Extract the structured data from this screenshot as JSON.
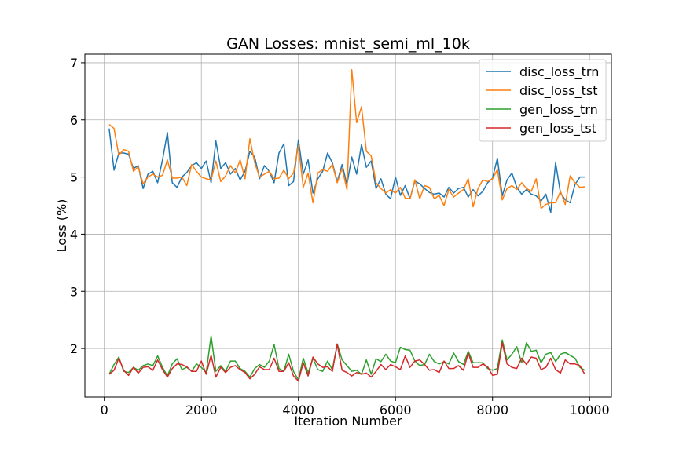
{
  "chart_data": {
    "type": "line",
    "title": "GAN Losses: mnist_semi_ml_10k",
    "xlabel": "Iteration Number",
    "ylabel": "Loss (%)",
    "xlim": [
      -400,
      10450
    ],
    "ylim": [
      1.15,
      7.15
    ],
    "xticks": [
      0,
      2000,
      4000,
      6000,
      8000,
      10000
    ],
    "yticks": [
      2,
      3,
      4,
      5,
      6,
      7
    ],
    "grid": true,
    "legend_position": "top-right",
    "x": [
      100,
      200,
      300,
      400,
      500,
      600,
      700,
      800,
      900,
      1000,
      1100,
      1200,
      1300,
      1400,
      1500,
      1600,
      1700,
      1800,
      1900,
      2000,
      2100,
      2200,
      2300,
      2400,
      2500,
      2600,
      2700,
      2800,
      2900,
      3000,
      3100,
      3200,
      3300,
      3400,
      3500,
      3600,
      3700,
      3800,
      3900,
      4000,
      4100,
      4200,
      4300,
      4400,
      4500,
      4600,
      4700,
      4800,
      4900,
      5000,
      5100,
      5200,
      5300,
      5400,
      5500,
      5600,
      5700,
      5800,
      5900,
      6000,
      6100,
      6200,
      6300,
      6400,
      6500,
      6600,
      6700,
      6800,
      6900,
      7000,
      7100,
      7200,
      7300,
      7400,
      7500,
      7600,
      7700,
      7800,
      7900,
      8000,
      8100,
      8200,
      8300,
      8400,
      8500,
      8600,
      8700,
      8800,
      8900,
      9000,
      9100,
      9200,
      9300,
      9400,
      9500,
      9600,
      9700,
      9800,
      9900
    ],
    "series": [
      {
        "name": "disc_loss_trn",
        "color": "#1f77b4",
        "values": [
          5.85,
          5.12,
          5.42,
          5.42,
          5.4,
          5.15,
          5.2,
          4.8,
          5.05,
          5.1,
          4.9,
          5.3,
          5.78,
          4.9,
          4.82,
          5.0,
          5.08,
          5.2,
          5.25,
          5.15,
          5.28,
          4.9,
          5.63,
          5.15,
          5.25,
          5.05,
          5.15,
          4.95,
          5.1,
          5.45,
          5.35,
          4.97,
          5.2,
          5.1,
          4.9,
          5.42,
          5.58,
          4.85,
          4.92,
          5.65,
          5.05,
          5.3,
          4.72,
          4.97,
          5.1,
          5.42,
          5.25,
          4.92,
          5.22,
          4.87,
          5.35,
          5.05,
          5.57,
          5.17,
          5.28,
          4.8,
          4.97,
          4.7,
          4.62,
          5.0,
          4.68,
          4.85,
          4.62,
          4.93,
          4.88,
          4.8,
          4.73,
          4.7,
          4.72,
          4.65,
          4.82,
          4.72,
          4.8,
          4.82,
          4.65,
          4.78,
          4.67,
          4.75,
          4.9,
          4.98,
          5.33,
          4.67,
          4.95,
          5.07,
          4.82,
          4.7,
          4.78,
          4.7,
          4.67,
          4.58,
          4.7,
          4.38,
          5.25,
          4.72,
          4.6,
          4.55,
          4.87,
          5.0,
          5.0
        ]
      },
      {
        "name": "disc_loss_tst",
        "color": "#ff7f0e",
        "values": [
          5.92,
          5.85,
          5.38,
          5.48,
          5.45,
          5.1,
          5.18,
          4.88,
          5.0,
          5.05,
          5.0,
          5.03,
          5.3,
          4.98,
          4.98,
          5.0,
          4.85,
          5.22,
          5.1,
          5.0,
          4.97,
          4.95,
          5.28,
          4.92,
          5.02,
          5.2,
          5.07,
          5.3,
          4.97,
          5.67,
          5.25,
          5.0,
          5.05,
          5.1,
          4.97,
          4.98,
          5.12,
          4.97,
          5.07,
          5.55,
          4.82,
          5.07,
          4.55,
          5.07,
          5.13,
          5.1,
          5.22,
          4.9,
          5.15,
          4.78,
          6.88,
          5.95,
          6.23,
          5.45,
          5.37,
          4.9,
          4.8,
          4.72,
          4.78,
          4.72,
          4.82,
          4.63,
          4.62,
          4.95,
          4.62,
          4.85,
          4.82,
          4.62,
          4.68,
          4.5,
          4.78,
          4.65,
          4.72,
          4.78,
          4.97,
          4.48,
          4.8,
          4.95,
          4.92,
          4.97,
          5.13,
          4.6,
          4.8,
          4.85,
          4.78,
          4.9,
          4.8,
          4.75,
          4.97,
          4.45,
          4.52,
          4.55,
          4.55,
          4.75,
          4.52,
          5.02,
          4.9,
          4.82,
          4.83
        ]
      },
      {
        "name": "gen_loss_trn",
        "color": "#2ca02c",
        "values": [
          1.55,
          1.72,
          1.85,
          1.6,
          1.58,
          1.67,
          1.62,
          1.7,
          1.73,
          1.7,
          1.87,
          1.67,
          1.52,
          1.73,
          1.82,
          1.63,
          1.67,
          1.6,
          1.73,
          1.67,
          1.58,
          2.22,
          1.6,
          1.7,
          1.6,
          1.78,
          1.78,
          1.65,
          1.6,
          1.5,
          1.65,
          1.72,
          1.67,
          1.78,
          2.07,
          1.65,
          1.6,
          1.9,
          1.6,
          1.45,
          1.83,
          1.57,
          1.83,
          1.63,
          1.6,
          1.78,
          1.63,
          2.08,
          1.8,
          1.7,
          1.6,
          1.62,
          1.55,
          1.8,
          1.55,
          1.82,
          1.77,
          1.9,
          1.78,
          1.75,
          2.02,
          1.98,
          1.97,
          1.78,
          1.7,
          1.72,
          1.9,
          1.77,
          1.73,
          1.77,
          1.73,
          1.92,
          1.77,
          1.72,
          1.95,
          1.75,
          1.75,
          1.75,
          1.65,
          1.62,
          1.65,
          2.15,
          1.8,
          1.9,
          2.03,
          1.75,
          2.1,
          1.95,
          1.97,
          1.75,
          1.9,
          1.93,
          1.77,
          1.9,
          1.93,
          1.88,
          1.83,
          1.67,
          1.62
        ]
      },
      {
        "name": "gen_loss_tst",
        "color": "#d62728",
        "values": [
          1.55,
          1.62,
          1.83,
          1.62,
          1.53,
          1.67,
          1.57,
          1.67,
          1.68,
          1.62,
          1.8,
          1.63,
          1.5,
          1.65,
          1.73,
          1.72,
          1.68,
          1.6,
          1.6,
          1.78,
          1.55,
          1.88,
          1.5,
          1.67,
          1.58,
          1.67,
          1.7,
          1.63,
          1.58,
          1.47,
          1.55,
          1.68,
          1.63,
          1.63,
          1.83,
          1.6,
          1.6,
          1.75,
          1.52,
          1.43,
          1.75,
          1.52,
          1.85,
          1.73,
          1.67,
          1.68,
          1.6,
          2.07,
          1.62,
          1.58,
          1.52,
          1.58,
          1.55,
          1.57,
          1.5,
          1.6,
          1.72,
          1.63,
          1.72,
          1.68,
          1.63,
          1.87,
          1.67,
          1.78,
          1.8,
          1.72,
          1.62,
          1.63,
          1.58,
          1.78,
          1.65,
          1.65,
          1.7,
          1.62,
          1.92,
          1.67,
          1.67,
          1.73,
          1.68,
          1.53,
          1.55,
          2.1,
          1.73,
          1.67,
          1.65,
          1.83,
          1.72,
          1.85,
          1.83,
          1.63,
          1.67,
          1.83,
          1.63,
          1.57,
          1.8,
          1.73,
          1.73,
          1.7,
          1.55
        ]
      }
    ]
  }
}
